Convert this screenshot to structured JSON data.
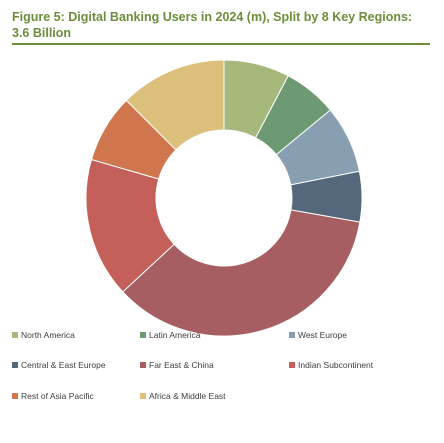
{
  "title": "Figure 5: Digital Banking Users in 2024 (m), Split by 8 Key Regions: 3.6 Billion",
  "chart_data": {
    "type": "pie",
    "style": "donut",
    "categories": [
      "North America",
      "Latin America",
      "West Europe",
      "Central & East Europe",
      "Far East & China",
      "Indian Subcontinent",
      "Rest of Asia Pacific",
      "Africa & Middle East"
    ],
    "values": [
      7.7,
      6.3,
      7.9,
      5.9,
      35.3,
      16.4,
      8.0,
      12.5
    ],
    "unit": "%",
    "colors": [
      "#a6b97b",
      "#6d9a73",
      "#879fb0",
      "#55677a",
      "#a65e63",
      "#c46059",
      "#d0764f",
      "#dcbf7a"
    ],
    "legend_position": "bottom"
  }
}
